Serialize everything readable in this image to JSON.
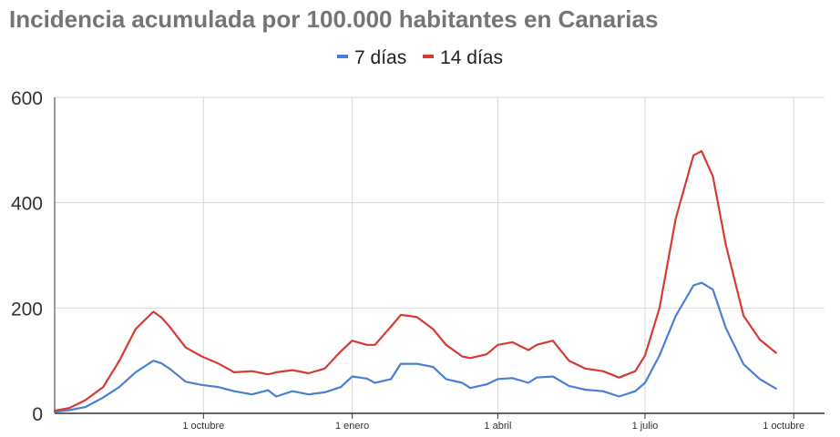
{
  "chart_data": {
    "type": "line",
    "title": "Incidencia acumulada por 100.000 habitantes en Canarias",
    "xlabel": "",
    "ylabel": "",
    "ylim": [
      0,
      600
    ],
    "yticks": [
      "0",
      "200",
      "400",
      "600"
    ],
    "xticks": [
      "1 octubre",
      "1 enero",
      "1 abril",
      "1 julio",
      "1 octubre"
    ],
    "x_range": [
      "2020-07-01",
      "2021-10-20"
    ],
    "grid": true,
    "legend_position": "top",
    "series": [
      {
        "name": "7 días",
        "color": "#4a7fd6",
        "points": [
          [
            "2020-07-01",
            3
          ],
          [
            "2020-07-10",
            6
          ],
          [
            "2020-07-20",
            12
          ],
          [
            "2020-07-31",
            30
          ],
          [
            "2020-08-10",
            50
          ],
          [
            "2020-08-20",
            78
          ],
          [
            "2020-08-31",
            100
          ],
          [
            "2020-09-05",
            95
          ],
          [
            "2020-09-10",
            85
          ],
          [
            "2020-09-20",
            60
          ],
          [
            "2020-09-30",
            54
          ],
          [
            "2020-10-10",
            50
          ],
          [
            "2020-10-20",
            42
          ],
          [
            "2020-10-31",
            36
          ],
          [
            "2020-11-10",
            44
          ],
          [
            "2020-11-15",
            32
          ],
          [
            "2020-11-25",
            42
          ],
          [
            "2020-12-05",
            36
          ],
          [
            "2020-12-15",
            40
          ],
          [
            "2020-12-25",
            50
          ],
          [
            "2021-01-01",
            70
          ],
          [
            "2021-01-10",
            66
          ],
          [
            "2021-01-15",
            58
          ],
          [
            "2021-01-25",
            65
          ],
          [
            "2021-01-31",
            94
          ],
          [
            "2021-02-10",
            94
          ],
          [
            "2021-02-20",
            88
          ],
          [
            "2021-02-28",
            65
          ],
          [
            "2021-03-10",
            58
          ],
          [
            "2021-03-15",
            48
          ],
          [
            "2021-03-25",
            55
          ],
          [
            "2021-04-01",
            65
          ],
          [
            "2021-04-10",
            67
          ],
          [
            "2021-04-20",
            58
          ],
          [
            "2021-04-25",
            68
          ],
          [
            "2021-05-05",
            70
          ],
          [
            "2021-05-15",
            52
          ],
          [
            "2021-05-25",
            45
          ],
          [
            "2021-06-05",
            42
          ],
          [
            "2021-06-15",
            32
          ],
          [
            "2021-06-25",
            42
          ],
          [
            "2021-07-01",
            58
          ],
          [
            "2021-07-10",
            110
          ],
          [
            "2021-07-20",
            185
          ],
          [
            "2021-07-31",
            243
          ],
          [
            "2021-08-05",
            248
          ],
          [
            "2021-08-12",
            235
          ],
          [
            "2021-08-20",
            162
          ],
          [
            "2021-08-31",
            93
          ],
          [
            "2021-09-10",
            65
          ],
          [
            "2021-09-20",
            47
          ]
        ]
      },
      {
        "name": "14 días",
        "color": "#d63b33",
        "points": [
          [
            "2020-07-01",
            5
          ],
          [
            "2020-07-10",
            10
          ],
          [
            "2020-07-20",
            25
          ],
          [
            "2020-07-31",
            50
          ],
          [
            "2020-08-10",
            100
          ],
          [
            "2020-08-20",
            160
          ],
          [
            "2020-08-31",
            193
          ],
          [
            "2020-09-05",
            182
          ],
          [
            "2020-09-10",
            165
          ],
          [
            "2020-09-20",
            125
          ],
          [
            "2020-09-30",
            108
          ],
          [
            "2020-10-10",
            95
          ],
          [
            "2020-10-20",
            78
          ],
          [
            "2020-10-31",
            80
          ],
          [
            "2020-11-10",
            74
          ],
          [
            "2020-11-15",
            78
          ],
          [
            "2020-11-25",
            82
          ],
          [
            "2020-12-05",
            76
          ],
          [
            "2020-12-15",
            85
          ],
          [
            "2020-12-25",
            118
          ],
          [
            "2021-01-01",
            138
          ],
          [
            "2021-01-10",
            130
          ],
          [
            "2021-01-15",
            130
          ],
          [
            "2021-01-25",
            165
          ],
          [
            "2021-01-31",
            187
          ],
          [
            "2021-02-10",
            183
          ],
          [
            "2021-02-20",
            160
          ],
          [
            "2021-02-28",
            130
          ],
          [
            "2021-03-10",
            108
          ],
          [
            "2021-03-15",
            105
          ],
          [
            "2021-03-25",
            112
          ],
          [
            "2021-04-01",
            130
          ],
          [
            "2021-04-10",
            135
          ],
          [
            "2021-04-20",
            120
          ],
          [
            "2021-04-25",
            130
          ],
          [
            "2021-05-05",
            138
          ],
          [
            "2021-05-15",
            100
          ],
          [
            "2021-05-25",
            85
          ],
          [
            "2021-06-05",
            80
          ],
          [
            "2021-06-15",
            68
          ],
          [
            "2021-06-25",
            80
          ],
          [
            "2021-07-01",
            110
          ],
          [
            "2021-07-10",
            200
          ],
          [
            "2021-07-20",
            370
          ],
          [
            "2021-07-31",
            490
          ],
          [
            "2021-08-05",
            498
          ],
          [
            "2021-08-12",
            450
          ],
          [
            "2021-08-20",
            320
          ],
          [
            "2021-08-31",
            185
          ],
          [
            "2021-09-10",
            140
          ],
          [
            "2021-09-20",
            115
          ]
        ]
      }
    ]
  }
}
